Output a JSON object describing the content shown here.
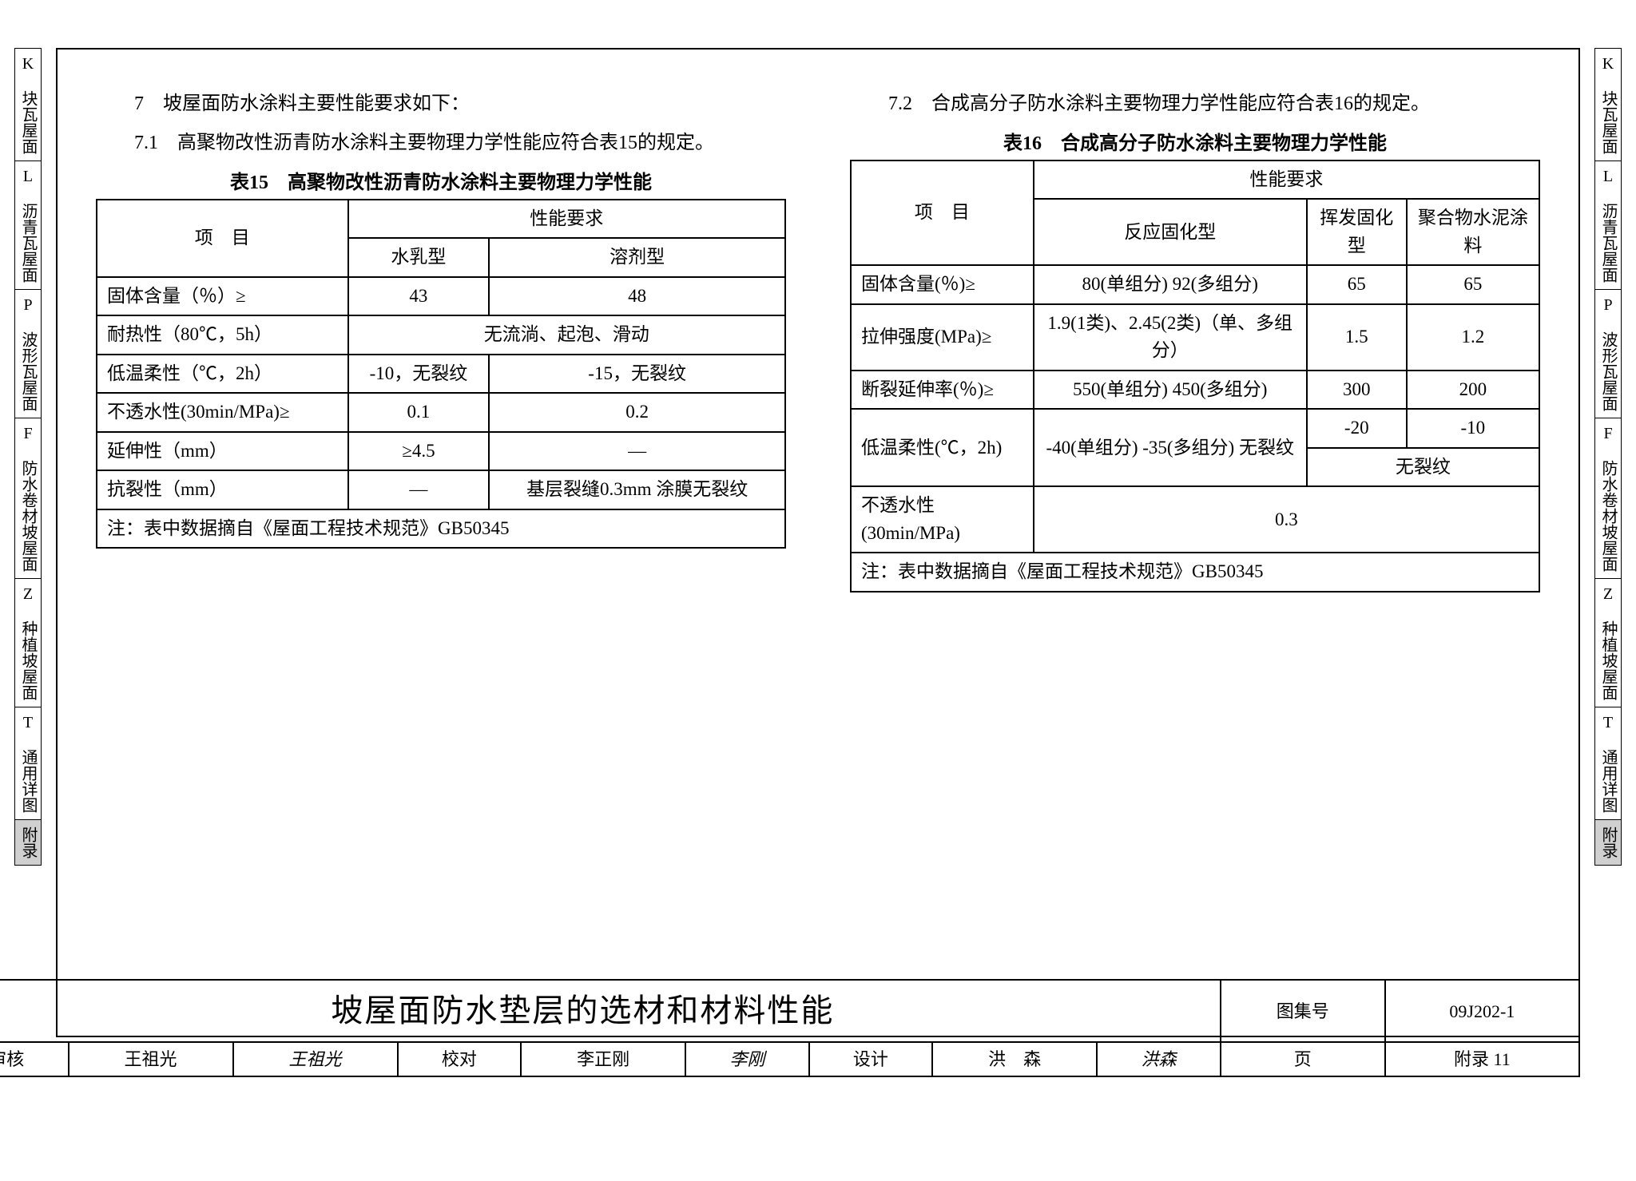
{
  "tabs": [
    {
      "code": "K",
      "label": "块瓦屋面",
      "active": false
    },
    {
      "code": "L",
      "label": "沥青瓦屋面",
      "active": false
    },
    {
      "code": "P",
      "label": "波形瓦屋面",
      "active": false
    },
    {
      "code": "F",
      "label": "防水卷材坡屋面",
      "active": false
    },
    {
      "code": "Z",
      "label": "种植坡屋面",
      "active": false
    },
    {
      "code": "T",
      "label": "通用详图",
      "active": false
    },
    {
      "code": "",
      "label": "附录",
      "active": true
    }
  ],
  "left_col": {
    "p7": "7　坡屋面防水涂料主要性能要求如下：",
    "p71": "7.1　高聚物改性沥青防水涂料主要物理力学性能应符合表15的规定。",
    "caption": "表15　高聚物改性沥青防水涂料主要物理力学性能",
    "head": {
      "item": "项　目",
      "req": "性能要求",
      "c1": "水乳型",
      "c2": "溶剂型"
    },
    "rows": [
      {
        "item": "固体含量（％）≥",
        "c1": "43",
        "c2": "48"
      },
      {
        "item": "耐热性（80℃，5h）",
        "merged": "无流淌、起泡、滑动"
      },
      {
        "item": "低温柔性（℃，2h）",
        "c1": "-10，无裂纹",
        "c2": "-15，无裂纹"
      },
      {
        "item": "不透水性(30min/MPa)≥",
        "c1": "0.1",
        "c2": "0.2"
      },
      {
        "item": "延伸性（mm）",
        "c1": "≥4.5",
        "c2": "—"
      },
      {
        "item": "抗裂性（mm）",
        "c1": "—",
        "c2": "基层裂缝0.3mm 涂膜无裂纹"
      }
    ],
    "note": "注：表中数据摘自《屋面工程技术规范》GB50345"
  },
  "right_col": {
    "p72": "7.2　合成高分子防水涂料主要物理力学性能应符合表16的规定。",
    "caption": "表16　合成高分子防水涂料主要物理力学性能",
    "head": {
      "item": "项　目",
      "req": "性能要求",
      "c1": "反应固化型",
      "c2": "挥发固化型",
      "c3": "聚合物水泥涂料"
    },
    "rows": [
      {
        "item": "固体含量(％)≥",
        "c1": "80(单组分) 92(多组分)",
        "c2": "65",
        "c3": "65"
      },
      {
        "item": "拉伸强度(MPa)≥",
        "c1": "1.9(1类)、2.45(2类)（单、多组分）",
        "c2": "1.5",
        "c3": "1.2"
      },
      {
        "item": "断裂延伸率(％)≥",
        "c1": "550(单组分) 450(多组分)",
        "c2": "300",
        "c3": "200"
      },
      {
        "item": "低温柔性(℃，2h)",
        "c1": "-40(单组分) -35(多组分) 无裂纹",
        "c2": "-20",
        "c3": "-10",
        "c23_below": "无裂纹"
      },
      {
        "item": "不透水性(30min/MPa)",
        "merged": "0.3"
      }
    ],
    "note": "注：表中数据摘自《屋面工程技术规范》GB50345"
  },
  "titleblock": {
    "main": "坡屋面防水垫层的选材和材料性能",
    "set_label": "图集号",
    "set_val": "09J202-1",
    "shenhe": "审核",
    "shenhe_name": "王祖光",
    "shenhe_sig": "王祖光",
    "jiaodui": "校对",
    "jiaodui_name": "李正刚",
    "jiaodui_sig": "李刚",
    "sheji": "设计",
    "sheji_name": "洪　森",
    "sheji_sig": "洪森",
    "page_label": "页",
    "page_val": "附录 11"
  },
  "colors": {
    "border": "#000000",
    "bg": "#ffffff",
    "tab_active": "#d0d0d0",
    "text": "#000000"
  }
}
